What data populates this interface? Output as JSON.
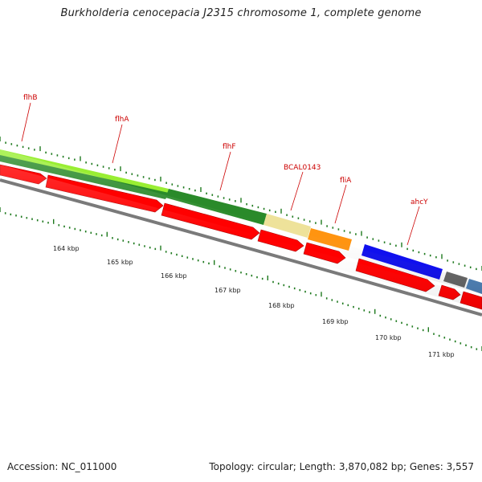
{
  "title": "Burkholderia cenocepacia J2315 chromosome 1, complete genome",
  "footer": {
    "accession": "Accession: NC_011000",
    "stats": "Topology: circular; Length: 3,870,082 bp; Genes: 3,557"
  },
  "genes": [
    {
      "label": "flhB"
    },
    {
      "label": "flhA"
    },
    {
      "label": "flhF"
    },
    {
      "label": "BCAL0143"
    },
    {
      "label": "fliA"
    },
    {
      "label": "ahcY"
    }
  ],
  "kbp_ticks": [
    "164 kbp",
    "165 kbp",
    "166 kbp",
    "167 kbp",
    "168 kbp",
    "169 kbp",
    "170 kbp",
    "171 kbp"
  ],
  "colors": {
    "label_red": "#cc0000",
    "gene_arrow": "#ff0000",
    "tick_green": "#1f7a1f",
    "light_green": "#99ee33",
    "dark_green": "#2a8a2a",
    "khaki": "#eee29a",
    "orange": "#ff9410",
    "blue": "#1010ee",
    "grey": "#666666",
    "steel_blue": "#4f82b8",
    "backbone": "#7a7a7a"
  }
}
